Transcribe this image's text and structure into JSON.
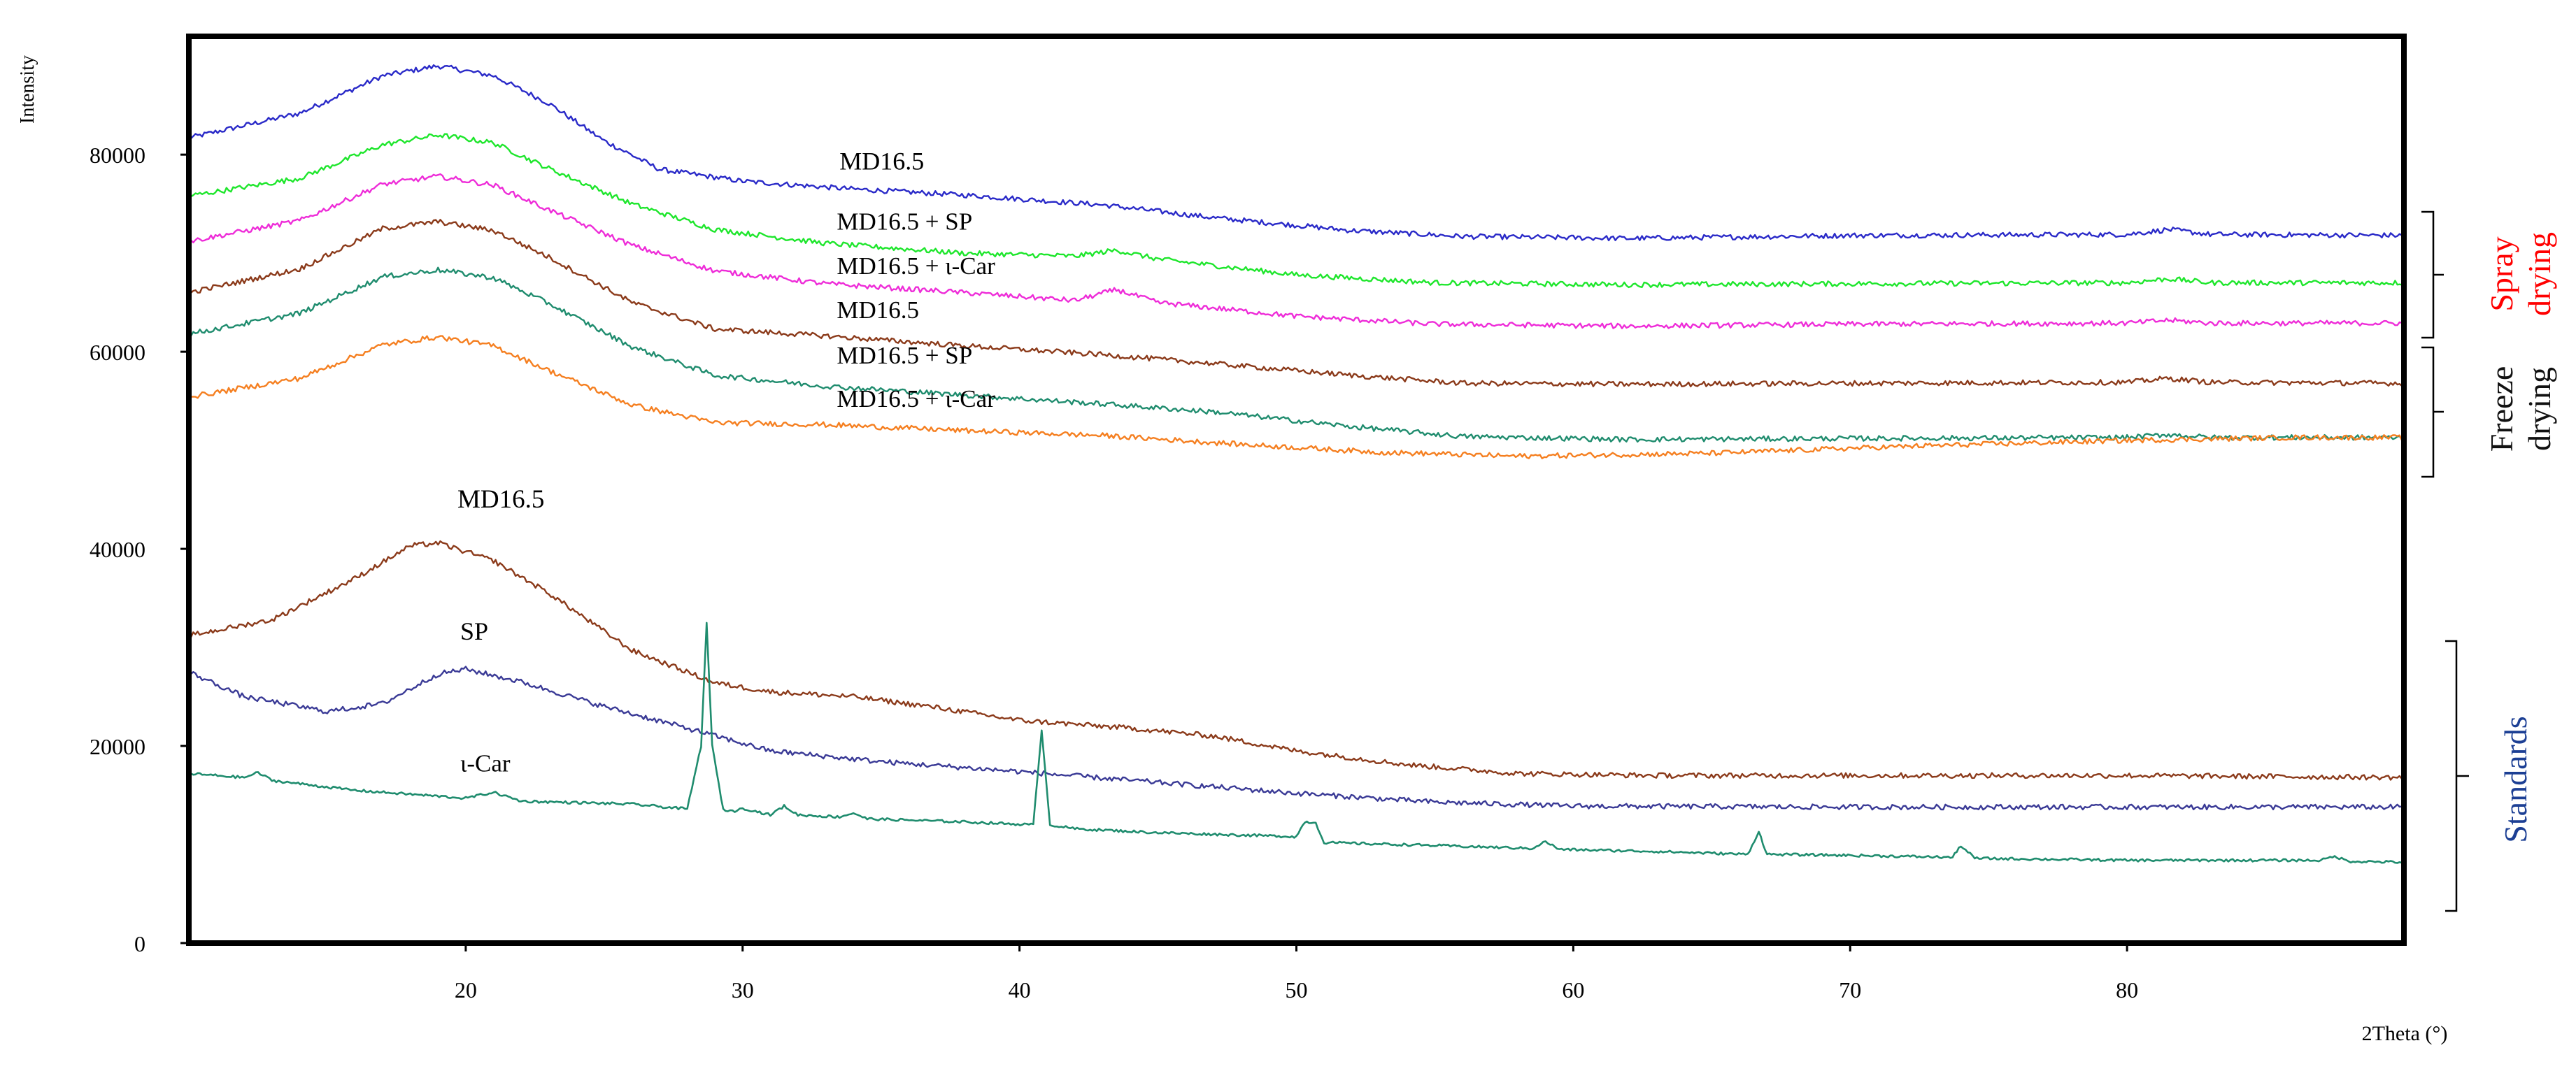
{
  "chart_data": {
    "type": "line",
    "title": "",
    "xlabel": "2Theta (°)",
    "ylabel": "Intensity",
    "xlim": [
      10,
      90
    ],
    "ylim": [
      0,
      92000
    ],
    "x_ticks": [
      20,
      30,
      40,
      50,
      60,
      70,
      80
    ],
    "y_ticks": [
      0,
      20000,
      40000,
      60000,
      80000
    ],
    "grid": false,
    "legend": "none",
    "series": [
      {
        "name": "MD16.5",
        "color": "#2a2ac8",
        "points": [
          [
            10,
            81700
          ],
          [
            14,
            84200
          ],
          [
            17,
            88000
          ],
          [
            19,
            89000
          ],
          [
            21,
            88000
          ],
          [
            23,
            85200
          ],
          [
            25,
            81400
          ],
          [
            27,
            78500
          ],
          [
            30,
            77300
          ],
          [
            34,
            76500
          ],
          [
            38,
            75900
          ],
          [
            43,
            74900
          ],
          [
            47,
            73600
          ],
          [
            52,
            72300
          ],
          [
            56,
            71700
          ],
          [
            62,
            71500
          ],
          [
            70,
            71800
          ],
          [
            80,
            71900
          ],
          [
            81.5,
            72400
          ],
          [
            83,
            71900
          ],
          [
            90,
            71800
          ]
        ]
      },
      {
        "name": "MD16.5 + SP",
        "color": "#1ee62c",
        "points": [
          [
            10,
            75800
          ],
          [
            14,
            77600
          ],
          [
            17,
            81000
          ],
          [
            19,
            82000
          ],
          [
            21,
            81200
          ],
          [
            23,
            78600
          ],
          [
            26,
            75000
          ],
          [
            29,
            72400
          ],
          [
            33,
            71000
          ],
          [
            38,
            70000
          ],
          [
            42,
            69700
          ],
          [
            43.5,
            70300
          ],
          [
            45,
            69400
          ],
          [
            50,
            67800
          ],
          [
            55,
            67000
          ],
          [
            62,
            66800
          ],
          [
            70,
            66900
          ],
          [
            80,
            67000
          ],
          [
            81.5,
            67400
          ],
          [
            83,
            67000
          ],
          [
            90,
            67000
          ]
        ]
      },
      {
        "name": "MD16.5 + ι-Car",
        "color": "#ee2cd8",
        "points": [
          [
            10,
            71200
          ],
          [
            14,
            73300
          ],
          [
            17,
            77000
          ],
          [
            19,
            77800
          ],
          [
            21,
            76900
          ],
          [
            23,
            74400
          ],
          [
            26,
            70800
          ],
          [
            29,
            68200
          ],
          [
            33,
            66900
          ],
          [
            38,
            66000
          ],
          [
            42,
            65200
          ],
          [
            43.5,
            66300
          ],
          [
            45,
            65000
          ],
          [
            50,
            63600
          ],
          [
            55,
            62800
          ],
          [
            62,
            62600
          ],
          [
            70,
            62800
          ],
          [
            80,
            62900
          ],
          [
            81.5,
            63200
          ],
          [
            83,
            62900
          ],
          [
            90,
            62900
          ]
        ]
      },
      {
        "name": "MD16.5",
        "color": "#8b3a1a",
        "points": [
          [
            10,
            66000
          ],
          [
            14,
            68400
          ],
          [
            17,
            72500
          ],
          [
            19,
            73200
          ],
          [
            21,
            72300
          ],
          [
            23,
            69600
          ],
          [
            26,
            65000
          ],
          [
            29,
            62300
          ],
          [
            33,
            61600
          ],
          [
            38,
            60600
          ],
          [
            43,
            59700
          ],
          [
            47,
            58800
          ],
          [
            52,
            57600
          ],
          [
            56,
            56800
          ],
          [
            62,
            56700
          ],
          [
            70,
            56800
          ],
          [
            80,
            56900
          ],
          [
            81.5,
            57300
          ],
          [
            83,
            56900
          ],
          [
            90,
            56800
          ]
        ]
      },
      {
        "name": "MD16.5 + SP",
        "color": "#1f8c6e",
        "points": [
          [
            10,
            61800
          ],
          [
            14,
            63900
          ],
          [
            17,
            67600
          ],
          [
            19,
            68300
          ],
          [
            21,
            67500
          ],
          [
            23,
            64900
          ],
          [
            26,
            60500
          ],
          [
            29,
            57600
          ],
          [
            33,
            56500
          ],
          [
            38,
            55600
          ],
          [
            43,
            54700
          ],
          [
            47,
            53900
          ],
          [
            52,
            52400
          ],
          [
            56,
            51400
          ],
          [
            62,
            51100
          ],
          [
            70,
            51200
          ],
          [
            80,
            51300
          ],
          [
            81.5,
            51600
          ],
          [
            83,
            51300
          ],
          [
            90,
            51300
          ]
        ]
      },
      {
        "name": "MD16.5 + ι-Car",
        "color": "#f57f20",
        "points": [
          [
            10,
            55400
          ],
          [
            14,
            57300
          ],
          [
            17,
            60700
          ],
          [
            19,
            61500
          ],
          [
            21,
            60600
          ],
          [
            23,
            58100
          ],
          [
            26,
            54600
          ],
          [
            29,
            52800
          ],
          [
            33,
            52600
          ],
          [
            38,
            52000
          ],
          [
            43,
            51500
          ],
          [
            48,
            50600
          ],
          [
            53,
            49800
          ],
          [
            58,
            49400
          ],
          [
            65,
            49700
          ],
          [
            72,
            50400
          ],
          [
            80,
            51000
          ],
          [
            86,
            51300
          ],
          [
            90,
            51300
          ]
        ]
      },
      {
        "name": "MD16.5",
        "color": "#8b3a1a",
        "points": [
          [
            10,
            31200
          ],
          [
            13,
            32800
          ],
          [
            16,
            37000
          ],
          [
            18,
            40300
          ],
          [
            19,
            40600
          ],
          [
            21,
            38800
          ],
          [
            23,
            35500
          ],
          [
            26,
            29700
          ],
          [
            29,
            26400
          ],
          [
            31,
            25500
          ],
          [
            34,
            25000
          ],
          [
            37,
            23900
          ],
          [
            40,
            22600
          ],
          [
            44,
            21800
          ],
          [
            47,
            21000
          ],
          [
            50,
            19500
          ],
          [
            54,
            18100
          ],
          [
            58,
            17200
          ],
          [
            63,
            17000
          ],
          [
            70,
            17000
          ],
          [
            80,
            17000
          ],
          [
            90,
            16800
          ]
        ]
      },
      {
        "name": "SP",
        "color": "#3a3a96",
        "points": [
          [
            10,
            27500
          ],
          [
            12,
            25000
          ],
          [
            15,
            23500
          ],
          [
            17,
            24300
          ],
          [
            19,
            27300
          ],
          [
            20,
            27800
          ],
          [
            22,
            26500
          ],
          [
            25,
            24000
          ],
          [
            28,
            21800
          ],
          [
            31,
            19500
          ],
          [
            35,
            18400
          ],
          [
            40,
            17400
          ],
          [
            45,
            16300
          ],
          [
            50,
            15200
          ],
          [
            55,
            14300
          ],
          [
            60,
            13900
          ],
          [
            70,
            13800
          ],
          [
            80,
            13800
          ],
          [
            90,
            13800
          ]
        ]
      },
      {
        "name": "ι-Car",
        "color": "#1f8c6e",
        "points": [
          [
            10,
            17200
          ],
          [
            12,
            16800
          ],
          [
            12.5,
            17300
          ],
          [
            13,
            16500
          ],
          [
            16,
            15500
          ],
          [
            20,
            14700
          ],
          [
            21,
            15300
          ],
          [
            22,
            14400
          ],
          [
            26,
            14100
          ],
          [
            28,
            13600
          ],
          [
            28.5,
            20000
          ],
          [
            28.7,
            32500
          ],
          [
            28.9,
            20000
          ],
          [
            29.3,
            13500
          ],
          [
            29.8,
            13400
          ],
          [
            30,
            13700
          ],
          [
            31,
            13000
          ],
          [
            31.5,
            13900
          ],
          [
            32,
            13000
          ],
          [
            33.5,
            12800
          ],
          [
            34,
            13200
          ],
          [
            34.5,
            12600
          ],
          [
            38,
            12300
          ],
          [
            40.5,
            12000
          ],
          [
            40.8,
            21700
          ],
          [
            41.1,
            12000
          ],
          [
            42,
            11600
          ],
          [
            45,
            11200
          ],
          [
            50,
            10800
          ],
          [
            50.3,
            12300
          ],
          [
            50.7,
            12200
          ],
          [
            51,
            10200
          ],
          [
            55,
            9900
          ],
          [
            58.5,
            9600
          ],
          [
            59,
            10300
          ],
          [
            59.5,
            9500
          ],
          [
            63,
            9300
          ],
          [
            66.3,
            9000
          ],
          [
            66.7,
            11300
          ],
          [
            67,
            9000
          ],
          [
            70,
            8900
          ],
          [
            73.7,
            8700
          ],
          [
            74,
            9900
          ],
          [
            74.5,
            8600
          ],
          [
            80,
            8400
          ],
          [
            87,
            8400
          ],
          [
            87.5,
            8800
          ],
          [
            88,
            8300
          ],
          [
            90,
            8200
          ]
        ]
      }
    ],
    "annotations": [
      {
        "text": "MD16.5",
        "x": 33.5,
        "y": 78500,
        "size": 36
      },
      {
        "text": "MD16.5 + SP",
        "x": 33.4,
        "y": 72400,
        "size": 35
      },
      {
        "text": "MD16.5 + ι-Car",
        "x": 33.4,
        "y": 67900,
        "size": 35
      },
      {
        "text": "MD16.5",
        "x": 33.4,
        "y": 63400,
        "size": 35
      },
      {
        "text": "MD16.5 + SP",
        "x": 33.4,
        "y": 58800,
        "size": 35
      },
      {
        "text": "MD16.5 + ι-Car",
        "x": 33.4,
        "y": 54400,
        "size": 35
      },
      {
        "text": "MD16.5",
        "x": 19.7,
        "y": 44200,
        "size": 37
      },
      {
        "text": "SP",
        "x": 19.8,
        "y": 30800,
        "size": 36
      },
      {
        "text": "ι-Car",
        "x": 19.8,
        "y": 17400,
        "size": 35
      }
    ],
    "groups": [
      {
        "lines": [
          "Spray",
          "drying"
        ],
        "color": "#ff0000"
      },
      {
        "lines": [
          "Freeze",
          "drying"
        ],
        "color": "#111111"
      },
      {
        "lines": [
          "Standards"
        ],
        "color": "#1c3f94"
      }
    ]
  }
}
